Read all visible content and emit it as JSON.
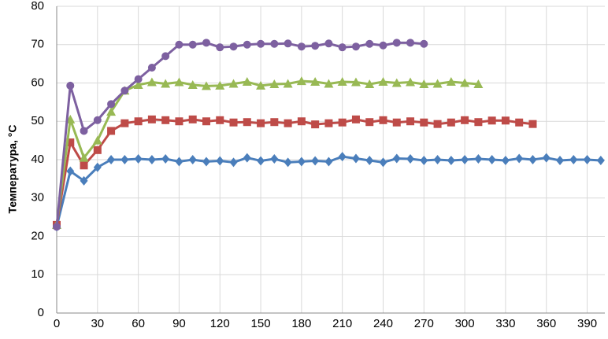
{
  "chart_data": {
    "type": "line",
    "y_label": "Температура, °C",
    "x": [
      0,
      10,
      20,
      30,
      40,
      50,
      60,
      70,
      80,
      90,
      100,
      110,
      120,
      130,
      140,
      150,
      160,
      170,
      180,
      190,
      200,
      210,
      220,
      230,
      240,
      250,
      260,
      270,
      280,
      290,
      300,
      310,
      320,
      330,
      340,
      350,
      360,
      370,
      380,
      390,
      400
    ],
    "series": [
      {
        "color": "#4a7ebb",
        "marker": "diamond",
        "values": [
          22.5,
          37,
          34.5,
          38,
          40,
          40,
          40.2,
          40,
          40.2,
          39.5,
          40,
          39.5,
          39.7,
          39.3,
          40.5,
          39.7,
          40.2,
          39.3,
          39.5,
          39.7,
          39.5,
          40.8,
          40.3,
          39.8,
          39.3,
          40.3,
          40.2,
          39.8,
          40,
          39.8,
          40,
          40.2,
          40,
          39.8,
          40.3,
          40,
          40.5,
          39.8,
          40,
          40,
          39.8
        ]
      },
      {
        "color": "#be4b48",
        "marker": "square",
        "values": [
          23,
          44.5,
          38.5,
          42.5,
          47.5,
          49.5,
          50,
          50.5,
          50.3,
          50,
          50.5,
          50,
          50.3,
          49.7,
          49.8,
          49.5,
          49.8,
          49.5,
          50,
          49.2,
          49.5,
          49.7,
          50.5,
          49.8,
          50.3,
          49.7,
          50,
          49.7,
          49.3,
          49.7,
          50.3,
          49.8,
          50.2,
          50.2,
          49.7,
          49.3,
          null,
          null,
          null,
          null,
          null
        ]
      },
      {
        "color": "#98b954",
        "marker": "triangle",
        "values": [
          23,
          50.5,
          40.5,
          45,
          52.5,
          58,
          59.5,
          60.2,
          59.8,
          60.2,
          59.5,
          59.2,
          59.3,
          59.8,
          60.3,
          59.3,
          59.7,
          59.8,
          60.5,
          60.3,
          59.8,
          60.3,
          60.2,
          59.7,
          60.3,
          60,
          60.2,
          59.7,
          59.8,
          60.3,
          60,
          59.7,
          null,
          null,
          null,
          null,
          null,
          null,
          null,
          null,
          null
        ]
      },
      {
        "color": "#7d60a0",
        "marker": "circle",
        "values": [
          22.5,
          59.3,
          47.5,
          50.3,
          54.5,
          58,
          61,
          64,
          67,
          70,
          70,
          70.5,
          69.3,
          69.5,
          70,
          70.2,
          70.2,
          70.3,
          69.5,
          69.7,
          70.3,
          69.3,
          69.5,
          70.2,
          69.8,
          70.5,
          70.5,
          70.2,
          null,
          null,
          null,
          null,
          null,
          null,
          null,
          null,
          null,
          null,
          null,
          null,
          null
        ]
      }
    ],
    "xlim": [
      0,
      403
    ],
    "xticks": [
      0,
      30,
      60,
      90,
      120,
      150,
      180,
      210,
      240,
      270,
      300,
      330,
      360,
      390
    ],
    "ylim": [
      0,
      80
    ],
    "yticks": [
      0,
      10,
      20,
      30,
      40,
      50,
      60,
      70,
      80
    ],
    "grid": true
  }
}
